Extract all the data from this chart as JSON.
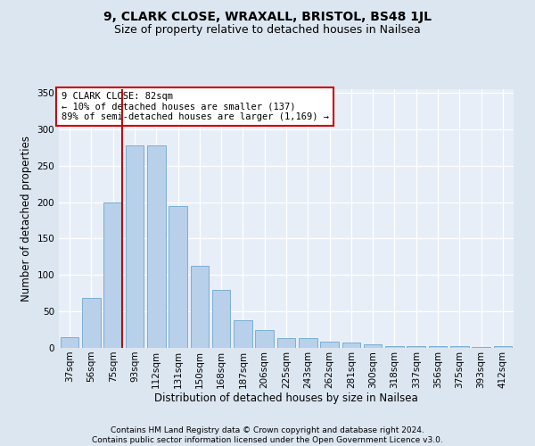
{
  "title": "9, CLARK CLOSE, WRAXALL, BRISTOL, BS48 1JL",
  "subtitle": "Size of property relative to detached houses in Nailsea",
  "xlabel": "Distribution of detached houses by size in Nailsea",
  "ylabel": "Number of detached properties",
  "footer": "Contains HM Land Registry data © Crown copyright and database right 2024.\nContains public sector information licensed under the Open Government Licence v3.0.",
  "categories": [
    "37sqm",
    "56sqm",
    "75sqm",
    "93sqm",
    "112sqm",
    "131sqm",
    "150sqm",
    "168sqm",
    "187sqm",
    "206sqm",
    "225sqm",
    "243sqm",
    "262sqm",
    "281sqm",
    "300sqm",
    "318sqm",
    "337sqm",
    "356sqm",
    "375sqm",
    "393sqm",
    "412sqm"
  ],
  "values": [
    15,
    68,
    200,
    278,
    278,
    195,
    113,
    79,
    38,
    25,
    13,
    13,
    8,
    7,
    5,
    3,
    2,
    2,
    2,
    1,
    2
  ],
  "bar_color": "#b8d0ea",
  "bar_edge_color": "#7aaed4",
  "red_line_index": 2,
  "red_line_color": "#cc0000",
  "annotation_text": "9 CLARK CLOSE: 82sqm\n← 10% of detached houses are smaller (137)\n89% of semi-detached houses are larger (1,169) →",
  "annotation_box_color": "#ffffff",
  "annotation_box_edge_color": "#cc0000",
  "ylim": [
    0,
    355
  ],
  "yticks": [
    0,
    50,
    100,
    150,
    200,
    250,
    300,
    350
  ],
  "bg_color": "#dce6f0",
  "plot_bg_color": "#e8eef7",
  "title_fontsize": 10,
  "subtitle_fontsize": 9,
  "axis_label_fontsize": 8.5,
  "tick_fontsize": 7.5,
  "footer_fontsize": 6.5
}
